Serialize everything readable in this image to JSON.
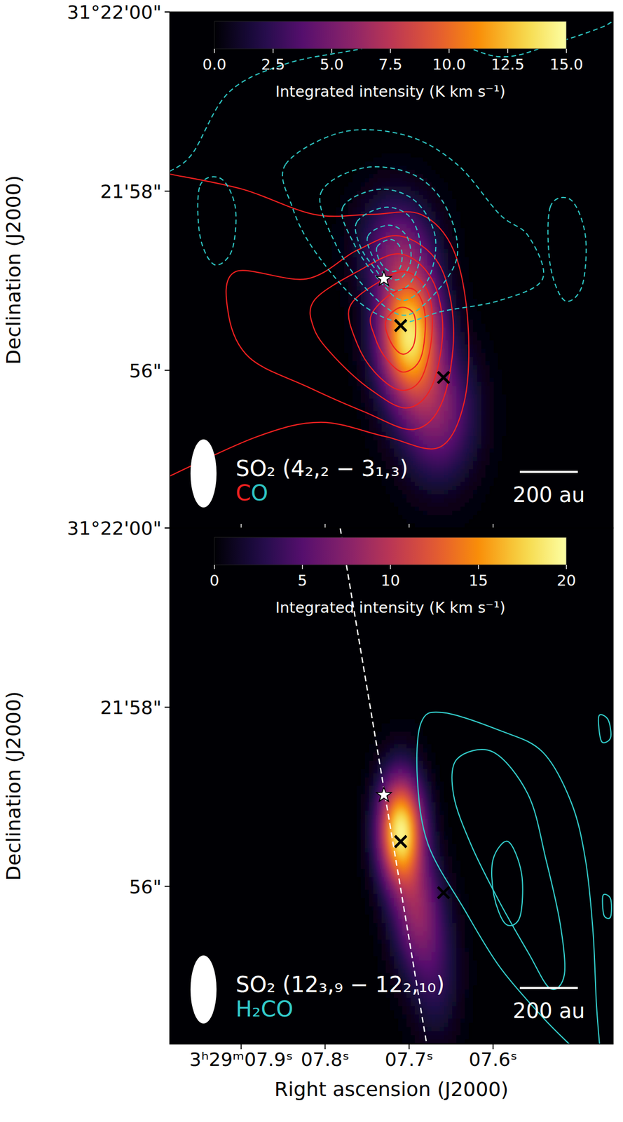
{
  "chart_data": [
    {
      "type": "image",
      "ylabel": "Declination (J2000)",
      "xlim": [
        7.985,
        7.457
      ],
      "ylim": [
        54.24,
        60
      ],
      "xticks": [
        7.9,
        7.8,
        7.7,
        7.6
      ],
      "yticks": [
        {
          "value": 56,
          "label": "56\""
        },
        {
          "value": 58,
          "label": "21'58\""
        },
        {
          "value": 60,
          "label": "31°22'00\""
        }
      ],
      "tick_labels": "y",
      "colorbar": {
        "label": "Integrated intensity (K km s⁻¹)",
        "lim": [
          0,
          15
        ],
        "ticks": [
          {
            "value": 0,
            "label": "0.0"
          },
          2.5,
          {
            "value": 5,
            "label": "5.0"
          },
          7.5,
          {
            "value": 10,
            "label": "10.0"
          },
          12.5,
          {
            "value": 15,
            "label": "15.0"
          }
        ]
      },
      "image": {
        "name": "SO₂ (4₂,₂ − 3₁,₃)",
        "components": [
          {
            "ra": 7.7,
            "dec": 56.4,
            "peak": 13.5,
            "sigma_ra": 0.025,
            "sigma_dec": 0.5
          },
          {
            "ra": 7.665,
            "dec": 55.5,
            "peak": 5,
            "sigma_ra": 0.03,
            "sigma_dec": 0.5
          },
          {
            "ra": 7.715,
            "dec": 57.4,
            "peak": 4,
            "sigma_ra": 0.03,
            "sigma_dec": 0.4
          }
        ]
      },
      "contour_label": "CO",
      "contours": [
        {
          "color": "#f02020",
          "line_style": "solid",
          "curves": [
            {
              "ra": [
                7.985,
                7.898,
                7.813,
                7.745,
                7.686,
                7.647,
                7.63,
                7.634,
                7.664,
                7.728,
                7.805,
                7.881,
                7.985
              ],
              "dec": [
                58.19,
                58.02,
                57.74,
                57.74,
                57.74,
                57.34,
                56.54,
                55.66,
                55.14,
                55.26,
                55.42,
                55.26,
                54.82
              ]
            },
            {
              "ra": [
                7.907,
                7.822,
                7.762,
                7.711,
                7.664,
                7.647,
                7.66,
                7.694,
                7.754,
                7.822,
                7.89,
                7.915,
                7.907
              ],
              "dec": [
                57.1,
                57.02,
                57.34,
                57.5,
                57.18,
                56.46,
                55.66,
                55.34,
                55.54,
                55.82,
                56.14,
                56.62,
                57.1
              ]
            },
            {
              "ra": [
                7.813,
                7.762,
                7.711,
                7.673,
                7.66,
                7.673,
                7.703,
                7.745,
                7.788,
                7.813,
                7.813
              ],
              "dec": [
                56.78,
                57.1,
                57.3,
                57.02,
                56.46,
                55.82,
                55.58,
                55.78,
                56.14,
                56.46,
                56.78
              ]
            },
            {
              "ra": [
                7.771,
                7.737,
                7.703,
                7.677,
                7.673,
                7.686,
                7.711,
                7.741,
                7.762,
                7.771
              ],
              "dec": [
                56.7,
                56.98,
                57.1,
                56.86,
                56.38,
                55.9,
                55.78,
                55.98,
                56.3,
                56.7
              ]
            },
            {
              "ra": [
                7.745,
                7.72,
                7.694,
                7.681,
                7.686,
                7.707,
                7.728,
                7.741,
                7.745
              ],
              "dec": [
                56.62,
                56.86,
                56.9,
                56.62,
                56.14,
                55.98,
                56.14,
                56.38,
                56.62
              ]
            },
            {
              "ra": [
                7.728,
                7.711,
                7.694,
                7.694,
                7.707,
                7.721,
                7.728
              ],
              "dec": [
                56.54,
                56.7,
                56.62,
                56.3,
                56.18,
                56.3,
                56.54
              ]
            }
          ]
        },
        {
          "color": "#2ec4c4",
          "line_style": "dashed",
          "curves": [
            {
              "ra": [
                7.985,
                7.958,
                7.915,
                7.847,
                7.762,
                7.677,
                7.592,
                7.524,
                7.473,
                7.457
              ],
              "dec": [
                58.22,
                58.42,
                59.1,
                59.42,
                59.58,
                59.74,
                59.5,
                59.66,
                59.82,
                59.9
              ]
            },
            {
              "ra": [
                7.847,
                7.779,
                7.703,
                7.643,
                7.592,
                7.558,
                7.541,
                7.592,
                7.66,
                7.711,
                7.762,
                7.813,
                7.839,
                7.847
              ],
              "dec": [
                58.3,
                58.66,
                58.62,
                58.3,
                57.74,
                57.5,
                57.02,
                56.78,
                56.66,
                56.54,
                56.78,
                57.34,
                57.82,
                58.3
              ]
            },
            {
              "ra": [
                7.805,
                7.754,
                7.694,
                7.656,
                7.643,
                7.677,
                7.711,
                7.754,
                7.788,
                7.805
              ],
              "dec": [
                57.98,
                58.26,
                58.18,
                57.82,
                57.26,
                56.78,
                56.62,
                56.94,
                57.42,
                57.98
              ]
            },
            {
              "ra": [
                7.779,
                7.737,
                7.694,
                7.669,
                7.677,
                7.707,
                7.737,
                7.766,
                7.779
              ],
              "dec": [
                57.82,
                58.02,
                57.9,
                57.5,
                57.02,
                56.78,
                57.02,
                57.42,
                57.82
              ]
            },
            {
              "ra": [
                7.762,
                7.728,
                7.698,
                7.686,
                7.698,
                7.72,
                7.741,
                7.758,
                7.762
              ],
              "dec": [
                57.66,
                57.82,
                57.7,
                57.34,
                56.98,
                56.9,
                57.14,
                57.38,
                57.66
              ]
            },
            {
              "ra": [
                7.749,
                7.724,
                7.703,
                7.698,
                7.711,
                7.728,
                7.743,
                7.749
              ],
              "dec": [
                57.5,
                57.62,
                57.5,
                57.22,
                57.02,
                57.06,
                57.26,
                57.5
              ]
            },
            {
              "ra": [
                7.738,
                7.721,
                7.709,
                7.711,
                7.724,
                7.735,
                7.738
              ],
              "dec": [
                57.38,
                57.46,
                57.34,
                57.14,
                57.11,
                57.22,
                57.38
              ]
            },
            {
              "ra": [
                7.949,
                7.924,
                7.907,
                7.911,
                7.932,
                7.949,
                7.949
              ],
              "dec": [
                58.06,
                58.14,
                57.82,
                57.34,
                57.18,
                57.5,
                58.06
              ]
            },
            {
              "ra": [
                7.532,
                7.507,
                7.49,
                7.494,
                7.515,
                7.532,
                7.532
              ],
              "dec": [
                57.82,
                57.9,
                57.5,
                56.94,
                56.78,
                57.18,
                57.82
              ]
            }
          ]
        }
      ],
      "sources": [
        {
          "ra": 7.73,
          "dec": 57.02,
          "marker": "star"
        },
        {
          "ra": 7.71,
          "dec": 56.5,
          "marker": "x"
        },
        {
          "ra": 7.659,
          "dec": 55.92,
          "marker": "x"
        }
      ],
      "beam": {
        "ra_extent": 0.031,
        "dec_extent": 0.76
      },
      "scale_bar": {
        "label": "200 au",
        "ra_extent": 0.069
      }
    },
    {
      "type": "image",
      "xlabel": "Right ascension (J2000)",
      "ylabel": "Declination (J2000)",
      "xlim": [
        7.985,
        7.457
      ],
      "ylim": [
        54.24,
        60
      ],
      "xticks": [
        {
          "value": 7.9,
          "label": "3ʰ29ᵐ07.9ˢ"
        },
        {
          "value": 7.8,
          "label": "07.8ˢ"
        },
        {
          "value": 7.7,
          "label": "07.7ˢ"
        },
        {
          "value": 7.6,
          "label": "07.6ˢ"
        }
      ],
      "yticks": [
        {
          "value": 56,
          "label": "56\""
        },
        {
          "value": 58,
          "label": "21'58\""
        },
        {
          "value": 60,
          "label": "31°22'00\""
        }
      ],
      "colorbar": {
        "label": "Integrated intensity (K km s⁻¹)",
        "lim": [
          0,
          20
        ],
        "ticks": [
          0,
          5,
          10,
          15,
          20
        ]
      },
      "image": {
        "name": "SO₂ (12₃,₉ − 12₂,₁₀)",
        "components": [
          {
            "ra": 7.71,
            "dec": 56.62,
            "peak": 19,
            "sigma_ra": 0.018,
            "sigma_dec": 0.42
          },
          {
            "ra": 7.69,
            "dec": 55.7,
            "peak": 7,
            "sigma_ra": 0.02,
            "sigma_dec": 0.45
          },
          {
            "ra": 7.668,
            "dec": 55.0,
            "peak": 3,
            "sigma_ra": 0.02,
            "sigma_dec": 0.5
          }
        ]
      },
      "contour_label": "H₂CO",
      "contours": [
        {
          "color": "#33cccc",
          "line_style": "solid",
          "curves": [
            {
              "ra": [
                7.507,
                7.541,
                7.592,
                7.634,
                7.677,
                7.69,
                7.686,
                7.66,
                7.592,
                7.541,
                7.507,
                7.49,
                7.481,
                7.477,
                7.473
              ],
              "dec": [
                54.22,
                54.54,
                55.1,
                55.74,
                56.46,
                57.18,
                57.82,
                57.94,
                57.74,
                57.5,
                56.94,
                56.3,
                55.5,
                54.7,
                54.22
              ]
            },
            {
              "ra": [
                7.643,
                7.6,
                7.558,
                7.537,
                7.52,
                7.515,
                7.532,
                7.558,
                7.592,
                7.626,
                7.647,
                7.643
              ],
              "dec": [
                57.42,
                57.5,
                57.02,
                56.3,
                55.58,
                55.02,
                54.86,
                55.26,
                55.82,
                56.46,
                57.02,
                57.42
              ]
            },
            {
              "ra": [
                7.6,
                7.582,
                7.566,
                7.568,
                7.585,
                7.599,
                7.6
              ],
              "dec": [
                56.3,
                56.5,
                56.14,
                55.66,
                55.58,
                55.9,
                56.3
              ]
            },
            {
              "ra": [
                7.474,
                7.463,
                7.46,
                7.471,
                7.474
              ],
              "dec": [
                57.9,
                57.86,
                57.66,
                57.62,
                57.9
              ]
            },
            {
              "ra": [
                7.469,
                7.46,
                7.46,
                7.468,
                7.469
              ],
              "dec": [
                55.9,
                55.86,
                55.66,
                55.68,
                55.9
              ]
            }
          ]
        }
      ],
      "line": {
        "ra": [
          7.782,
          7.679
        ],
        "dec": [
          60,
          54.24
        ],
        "line_style": "dashed"
      },
      "sources": [
        {
          "ra": 7.73,
          "dec": 57.02,
          "marker": "star"
        },
        {
          "ra": 7.71,
          "dec": 56.5,
          "marker": "x"
        },
        {
          "ra": 7.659,
          "dec": 55.93,
          "marker": "x"
        }
      ],
      "beam": {
        "ra_extent": 0.031,
        "dec_extent": 0.76
      },
      "scale_bar": {
        "label": "200 au",
        "ra_extent": 0.069
      }
    }
  ]
}
